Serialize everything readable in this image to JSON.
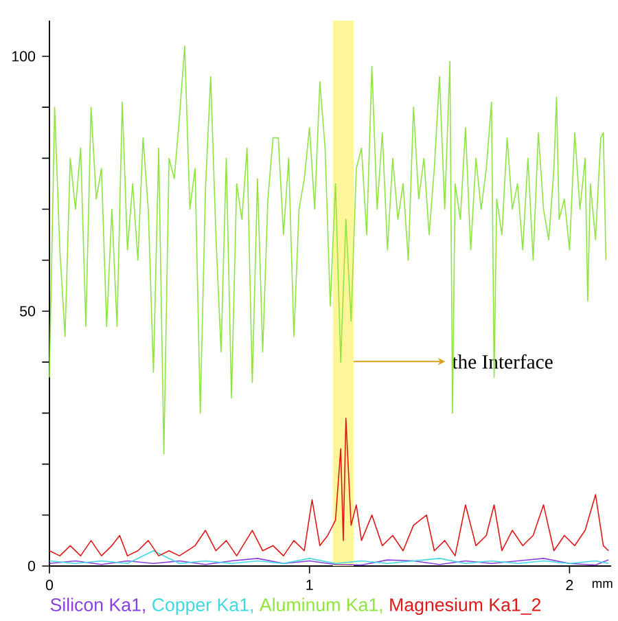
{
  "chart_data": {
    "type": "line",
    "xlabel": "mm",
    "xlim": [
      0,
      2.16
    ],
    "ylim": [
      0,
      107
    ],
    "xticks": [
      0,
      1,
      2
    ],
    "yticks": [
      0,
      {
        "value": 10,
        "label": null
      },
      {
        "value": 20,
        "label": null
      },
      {
        "value": 30,
        "label": null
      },
      {
        "value": 40,
        "label": null
      },
      50,
      {
        "value": 60,
        "label": null
      },
      {
        "value": 70,
        "label": null
      },
      {
        "value": 80,
        "label": null
      },
      {
        "value": 90,
        "label": null
      },
      100
    ],
    "legend": "bottom",
    "grid": false,
    "marker": "none",
    "line_style": "solid",
    "bands": [
      {
        "axis": "x",
        "from": 1.09,
        "to": 1.17,
        "label": "the Interface",
        "color": "#fff59a"
      }
    ],
    "series": [
      {
        "name": "Silicon Ka1,",
        "color": "#8a3fe0",
        "x": [
          0,
          0.1,
          0.2,
          0.3,
          0.4,
          0.5,
          0.6,
          0.7,
          0.8,
          0.9,
          1.0,
          1.1,
          1.2,
          1.3,
          1.4,
          1.5,
          1.6,
          1.7,
          1.8,
          1.9,
          2.0,
          2.1,
          2.15
        ],
        "values": [
          0.5,
          1,
          0.3,
          1,
          0.5,
          1,
          0.3,
          1,
          1.5,
          0.5,
          1,
          0.3,
          0.2,
          1.2,
          1,
          0.3,
          1,
          0.5,
          1,
          1.5,
          0.5,
          0.2,
          1.2
        ]
      },
      {
        "name": "Copper Ka1,",
        "color": "#40d8e0",
        "x": [
          0,
          0.1,
          0.2,
          0.3,
          0.4,
          0.5,
          0.6,
          0.7,
          0.8,
          0.9,
          1.0,
          1.1,
          1.2,
          1.3,
          1.4,
          1.5,
          1.6,
          1.7,
          1.8,
          1.9,
          2.0,
          2.1,
          2.15
        ],
        "values": [
          1,
          0.5,
          1,
          0.5,
          3,
          0.5,
          1,
          0.5,
          1,
          0.5,
          1.5,
          0.5,
          1,
          0.5,
          1,
          1.5,
          0.5,
          1,
          0.5,
          1,
          0.5,
          1,
          0.5
        ]
      },
      {
        "name": "Aluminum Ka1,",
        "color": "#8ee53f",
        "x": [
          0,
          0.02,
          0.04,
          0.06,
          0.08,
          0.1,
          0.12,
          0.14,
          0.16,
          0.18,
          0.2,
          0.22,
          0.24,
          0.26,
          0.28,
          0.3,
          0.32,
          0.34,
          0.36,
          0.38,
          0.4,
          0.42,
          0.44,
          0.46,
          0.48,
          0.5,
          0.52,
          0.54,
          0.56,
          0.58,
          0.6,
          0.62,
          0.64,
          0.66,
          0.68,
          0.7,
          0.72,
          0.74,
          0.76,
          0.78,
          0.8,
          0.82,
          0.84,
          0.86,
          0.88,
          0.9,
          0.92,
          0.94,
          0.96,
          0.98,
          1.0,
          1.02,
          1.04,
          1.06,
          1.08,
          1.1,
          1.12,
          1.14,
          1.16,
          1.18,
          1.2,
          1.22,
          1.24,
          1.26,
          1.28,
          1.3,
          1.32,
          1.34,
          1.36,
          1.38,
          1.4,
          1.42,
          1.44,
          1.46,
          1.48,
          1.5,
          1.52,
          1.54,
          1.55,
          1.56,
          1.58,
          1.6,
          1.62,
          1.64,
          1.66,
          1.68,
          1.7,
          1.71,
          1.72,
          1.74,
          1.76,
          1.78,
          1.8,
          1.82,
          1.84,
          1.86,
          1.88,
          1.9,
          1.92,
          1.94,
          1.95,
          1.96,
          1.98,
          2.0,
          2.02,
          2.04,
          2.06,
          2.07,
          2.08,
          2.1,
          2.12,
          2.13,
          2.14
        ],
        "values": [
          37,
          90,
          62,
          45,
          80,
          70,
          82,
          47,
          90,
          72,
          78,
          47,
          70,
          47,
          91,
          62,
          75,
          60,
          84,
          70,
          38,
          82,
          22,
          80,
          76,
          88,
          102,
          70,
          78,
          30,
          74,
          96,
          65,
          42,
          80,
          33,
          75,
          68,
          82,
          36,
          76,
          42,
          72,
          84,
          84,
          65,
          80,
          45,
          70,
          76,
          86,
          70,
          95,
          82,
          51,
          75,
          40,
          68,
          48,
          78,
          82,
          65,
          98,
          70,
          85,
          62,
          80,
          68,
          75,
          60,
          90,
          72,
          80,
          65,
          78,
          96,
          70,
          99,
          30,
          75,
          68,
          86,
          62,
          80,
          70,
          78,
          91,
          37,
          72,
          65,
          84,
          70,
          75,
          62,
          80,
          60,
          85,
          70,
          64,
          78,
          92,
          68,
          72,
          62,
          85,
          70,
          80,
          52,
          75,
          64,
          84,
          85,
          60
        ]
      },
      {
        "name": "Magnesium Ka1_2",
        "color": "#e01818",
        "x": [
          0,
          0.04,
          0.08,
          0.12,
          0.16,
          0.2,
          0.24,
          0.27,
          0.3,
          0.34,
          0.38,
          0.42,
          0.46,
          0.5,
          0.56,
          0.6,
          0.64,
          0.68,
          0.72,
          0.78,
          0.82,
          0.86,
          0.9,
          0.94,
          0.98,
          1.01,
          1.04,
          1.07,
          1.1,
          1.12,
          1.13,
          1.14,
          1.16,
          1.18,
          1.2,
          1.24,
          1.28,
          1.32,
          1.36,
          1.4,
          1.45,
          1.48,
          1.52,
          1.56,
          1.6,
          1.64,
          1.68,
          1.71,
          1.74,
          1.78,
          1.82,
          1.86,
          1.9,
          1.94,
          1.98,
          2.02,
          2.06,
          2.1,
          2.13,
          2.15
        ],
        "values": [
          3,
          2,
          4,
          2,
          5,
          2,
          4,
          6,
          2,
          3,
          5,
          2,
          3,
          2,
          4,
          7,
          3,
          5,
          2,
          7,
          3,
          4,
          2,
          5,
          3,
          13,
          4,
          6,
          9,
          23,
          5,
          29,
          8,
          12,
          5,
          10,
          4,
          6,
          3,
          8,
          10,
          3,
          5,
          2,
          12,
          4,
          6,
          12,
          3,
          7,
          4,
          6,
          12,
          3,
          6,
          4,
          7,
          14,
          4,
          3
        ]
      }
    ]
  }
}
